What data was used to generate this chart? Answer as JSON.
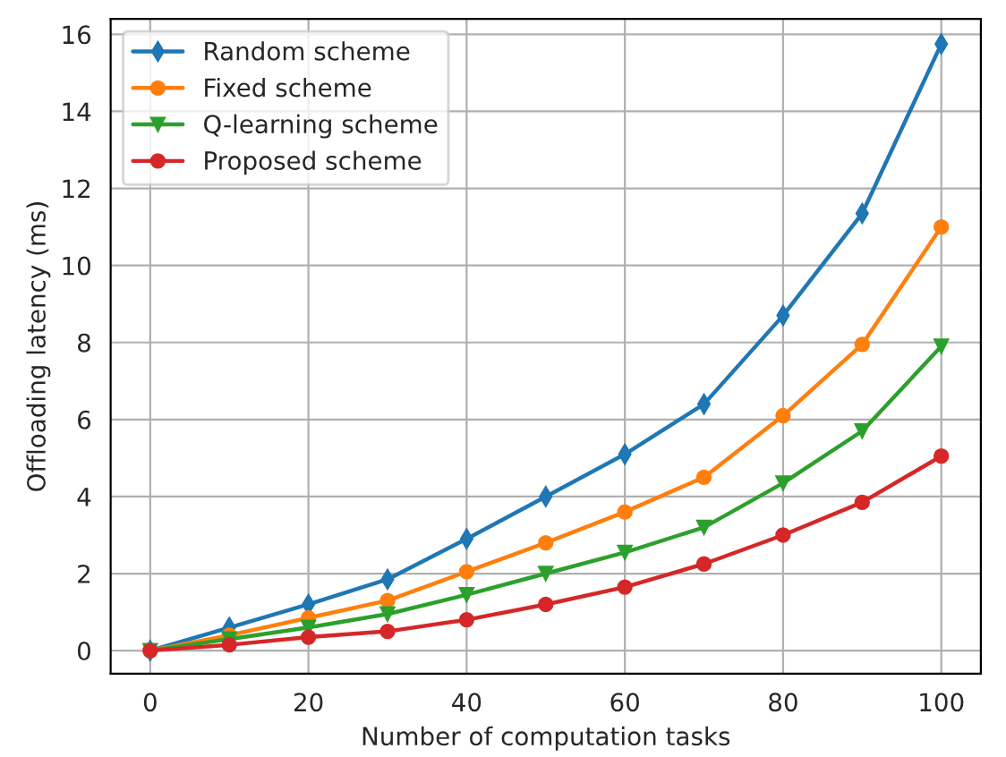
{
  "chart_data": {
    "type": "line",
    "xlabel": "Number of computation tasks",
    "ylabel": "Offloading latency (ms)",
    "x": [
      0,
      10,
      20,
      30,
      40,
      50,
      60,
      70,
      80,
      90,
      100
    ],
    "series": [
      {
        "name": "Random scheme",
        "color": "#1f77b4",
        "marker": "diamond",
        "values": [
          0,
          0.6,
          1.2,
          1.85,
          2.9,
          4.0,
          5.1,
          6.4,
          8.7,
          11.35,
          15.75
        ]
      },
      {
        "name": "Fixed scheme",
        "color": "#ff7f0e",
        "marker": "circle",
        "values": [
          0,
          0.4,
          0.85,
          1.3,
          2.05,
          2.8,
          3.6,
          4.5,
          6.1,
          7.95,
          11.0
        ]
      },
      {
        "name": "Q-learning scheme",
        "color": "#2ca02c",
        "marker": "triangle",
        "values": [
          0,
          0.3,
          0.6,
          0.95,
          1.45,
          2.0,
          2.55,
          3.2,
          4.35,
          5.7,
          7.9
        ]
      },
      {
        "name": "Proposed scheme",
        "color": "#d62728",
        "marker": "circle",
        "values": [
          0,
          0.15,
          0.35,
          0.5,
          0.8,
          1.2,
          1.65,
          2.25,
          3.0,
          3.85,
          5.05
        ]
      }
    ],
    "xlim": [
      -5,
      105
    ],
    "xticks": [
      0,
      20,
      40,
      60,
      80,
      100
    ],
    "ylim": [
      -0.6,
      16.4
    ],
    "yticks": [
      0,
      2,
      4,
      6,
      8,
      10,
      12,
      14,
      16
    ],
    "grid": true,
    "legend": "top left",
    "line_style": "solid"
  }
}
